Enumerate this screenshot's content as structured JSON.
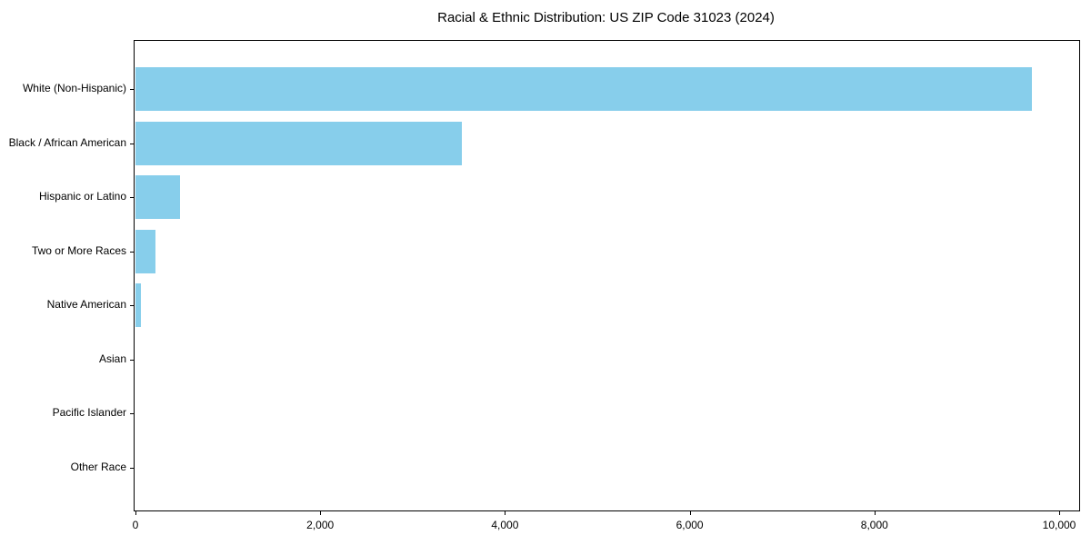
{
  "title": "Racial & Ethnic Distribution: US ZIP Code 31023 (2024)",
  "chart_data": {
    "type": "bar",
    "orientation": "horizontal",
    "title": "Racial & Ethnic Distribution: US ZIP Code 31023 (2024)",
    "categories": [
      "White (Non-Hispanic)",
      "Black / African American",
      "Hispanic or Latino",
      "Two or More Races",
      "Native American",
      "Asian",
      "Pacific Islander",
      "Other Race"
    ],
    "values": [
      9705,
      3535,
      480,
      220,
      55,
      0,
      0,
      0
    ],
    "xlabel": "",
    "ylabel": "",
    "xlim": [
      0,
      10215
    ],
    "x_ticks": [
      0,
      2000,
      4000,
      6000,
      8000,
      10000
    ],
    "x_tick_labels": [
      "0",
      "2,000",
      "4,000",
      "6,000",
      "8,000",
      "10,000"
    ],
    "bar_color": "#87CEEB",
    "background_color": "#ffffff",
    "frame_color": "#000000",
    "grid": false,
    "legend": null
  }
}
